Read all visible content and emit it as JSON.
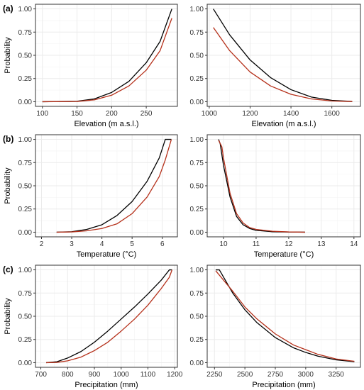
{
  "figure": {
    "row_labels": [
      "(a)",
      "(b)",
      "(c)"
    ],
    "ylabel": "Probability"
  },
  "colors": {
    "black_curve": "#000000",
    "red_curve": "#b5301a",
    "grid": "#ebebeb",
    "frame": "#333333"
  },
  "chart_data": [
    {
      "type": "line",
      "xlabel": "Elevation (m a.s.l.)",
      "ylabel": "Probability",
      "xlim": [
        90,
        295
      ],
      "ylim": [
        -0.05,
        1.05
      ],
      "xticks": [
        100,
        150,
        200,
        250
      ],
      "xtick_labels": [
        "100",
        "150",
        "200",
        "250"
      ],
      "yticks": [
        0,
        0.25,
        0.5,
        0.75,
        1
      ],
      "ytick_labels": [
        "0.00",
        "0.25",
        "0.50",
        "0.75",
        "1.00"
      ],
      "grid": true,
      "series": [
        {
          "color": "black",
          "x": [
            100,
            150,
            175,
            200,
            225,
            250,
            270,
            287
          ],
          "y": [
            0,
            0.005,
            0.03,
            0.1,
            0.22,
            0.42,
            0.65,
            1.0
          ]
        },
        {
          "color": "red",
          "x": [
            100,
            150,
            175,
            200,
            225,
            250,
            270,
            287
          ],
          "y": [
            0,
            0.003,
            0.02,
            0.07,
            0.17,
            0.34,
            0.55,
            0.9
          ]
        }
      ]
    },
    {
      "type": "line",
      "xlabel": "Elevation (m a.s.l.)",
      "ylabel": "",
      "xlim": [
        990,
        1740
      ],
      "ylim": [
        -0.05,
        1.05
      ],
      "xticks": [
        1000,
        1200,
        1400,
        1600
      ],
      "xtick_labels": [
        "1000",
        "1200",
        "1400",
        "1600"
      ],
      "yticks": [
        0,
        0.25,
        0.5,
        0.75,
        1
      ],
      "ytick_labels": [
        "0.00",
        "0.25",
        "0.50",
        "0.75",
        "1.00"
      ],
      "grid": true,
      "series": [
        {
          "color": "black",
          "x": [
            1020,
            1100,
            1200,
            1300,
            1400,
            1500,
            1600,
            1700
          ],
          "y": [
            1.0,
            0.72,
            0.45,
            0.26,
            0.13,
            0.05,
            0.015,
            0.003
          ]
        },
        {
          "color": "red",
          "x": [
            1020,
            1100,
            1200,
            1300,
            1400,
            1500,
            1600,
            1700
          ],
          "y": [
            0.8,
            0.55,
            0.32,
            0.17,
            0.08,
            0.03,
            0.008,
            0.002
          ]
        }
      ]
    },
    {
      "type": "line",
      "xlabel": "Temperature (°C)",
      "ylabel": "Probability",
      "xlim": [
        1.8,
        6.5
      ],
      "ylim": [
        -0.05,
        1.05
      ],
      "xticks": [
        2,
        3,
        4,
        5,
        6
      ],
      "xtick_labels": [
        "2",
        "3",
        "4",
        "5",
        "6"
      ],
      "yticks": [
        0,
        0.25,
        0.5,
        0.75,
        1
      ],
      "ytick_labels": [
        "0.00",
        "0.25",
        "0.50",
        "0.75",
        "1.00"
      ],
      "grid": true,
      "series": [
        {
          "color": "black",
          "x": [
            2.5,
            3.0,
            3.5,
            4.0,
            4.5,
            5.0,
            5.5,
            5.9,
            6.1,
            6.3
          ],
          "y": [
            0,
            0.005,
            0.03,
            0.08,
            0.18,
            0.33,
            0.55,
            0.8,
            1.0,
            1.0
          ]
        },
        {
          "color": "red",
          "x": [
            2.5,
            3.0,
            3.5,
            4.0,
            4.5,
            5.0,
            5.5,
            5.9,
            6.1,
            6.3
          ],
          "y": [
            0,
            0.003,
            0.015,
            0.04,
            0.09,
            0.2,
            0.38,
            0.6,
            0.78,
            1.0
          ]
        }
      ]
    },
    {
      "type": "line",
      "xlabel": "Temperature (°C)",
      "ylabel": "",
      "xlim": [
        9.5,
        14.2
      ],
      "ylim": [
        -0.05,
        1.05
      ],
      "xticks": [
        10,
        11,
        12,
        13,
        14
      ],
      "xtick_labels": [
        "10",
        "11",
        "12",
        "13",
        "14"
      ],
      "yticks": [
        0,
        0.25,
        0.5,
        0.75,
        1
      ],
      "ytick_labels": [
        "0.00",
        "0.25",
        "0.50",
        "0.75",
        "1.00"
      ],
      "grid": true,
      "series": [
        {
          "color": "black",
          "x": [
            9.85,
            9.9,
            10.0,
            10.2,
            10.4,
            10.6,
            10.8,
            11.0,
            11.5,
            12.0,
            12.5
          ],
          "y": [
            1.0,
            0.95,
            0.72,
            0.38,
            0.17,
            0.08,
            0.04,
            0.02,
            0.005,
            0.002,
            0
          ]
        },
        {
          "color": "red",
          "x": [
            9.85,
            9.95,
            10.0,
            10.2,
            10.4,
            10.6,
            10.8,
            11.0,
            11.5,
            12.0,
            12.5
          ],
          "y": [
            0.99,
            0.92,
            0.8,
            0.42,
            0.2,
            0.1,
            0.05,
            0.03,
            0.01,
            0.003,
            0
          ]
        }
      ]
    },
    {
      "type": "line",
      "xlabel": "Precipitation (mm)",
      "ylabel": "Probability",
      "xlim": [
        680,
        1210
      ],
      "ylim": [
        -0.05,
        1.05
      ],
      "xticks": [
        700,
        800,
        900,
        1000,
        1100,
        1200
      ],
      "xtick_labels": [
        "700",
        "800",
        "900",
        "1000",
        "1100",
        "1200"
      ],
      "yticks": [
        0,
        0.25,
        0.5,
        0.75,
        1
      ],
      "ytick_labels": [
        "0.00",
        "0.25",
        "0.50",
        "0.75",
        "1.00"
      ],
      "grid": true,
      "series": [
        {
          "color": "black",
          "x": [
            720,
            760,
            800,
            850,
            900,
            950,
            1000,
            1050,
            1100,
            1150,
            1180,
            1190
          ],
          "y": [
            0,
            0.01,
            0.05,
            0.12,
            0.22,
            0.34,
            0.47,
            0.6,
            0.74,
            0.89,
            1.0,
            1.0
          ]
        },
        {
          "color": "red",
          "x": [
            720,
            760,
            800,
            850,
            900,
            950,
            1000,
            1050,
            1100,
            1150,
            1180,
            1190
          ],
          "y": [
            0,
            0.003,
            0.02,
            0.06,
            0.13,
            0.22,
            0.34,
            0.47,
            0.62,
            0.8,
            0.92,
            1.0
          ]
        }
      ]
    },
    {
      "type": "line",
      "xlabel": "Precipitation (mm)",
      "ylabel": "",
      "xlim": [
        2190,
        3450
      ],
      "ylim": [
        -0.05,
        1.05
      ],
      "xticks": [
        2250,
        2500,
        2750,
        3000,
        3250
      ],
      "xtick_labels": [
        "2250",
        "2500",
        "2750",
        "3000",
        "3250"
      ],
      "yticks": [
        0,
        0.25,
        0.5,
        0.75,
        1
      ],
      "ytick_labels": [
        "0.00",
        "0.25",
        "0.50",
        "0.75",
        "1.00"
      ],
      "grid": true,
      "series": [
        {
          "color": "black",
          "x": [
            2260,
            2290,
            2400,
            2500,
            2600,
            2750,
            2900,
            3000,
            3100,
            3250,
            3400
          ],
          "y": [
            1.0,
            1.0,
            0.75,
            0.57,
            0.43,
            0.27,
            0.16,
            0.11,
            0.07,
            0.03,
            0.01
          ]
        },
        {
          "color": "red",
          "x": [
            2260,
            2400,
            2500,
            2600,
            2750,
            2900,
            3000,
            3100,
            3250,
            3400
          ],
          "y": [
            0.99,
            0.77,
            0.6,
            0.47,
            0.31,
            0.19,
            0.14,
            0.09,
            0.04,
            0.015
          ]
        }
      ]
    }
  ]
}
